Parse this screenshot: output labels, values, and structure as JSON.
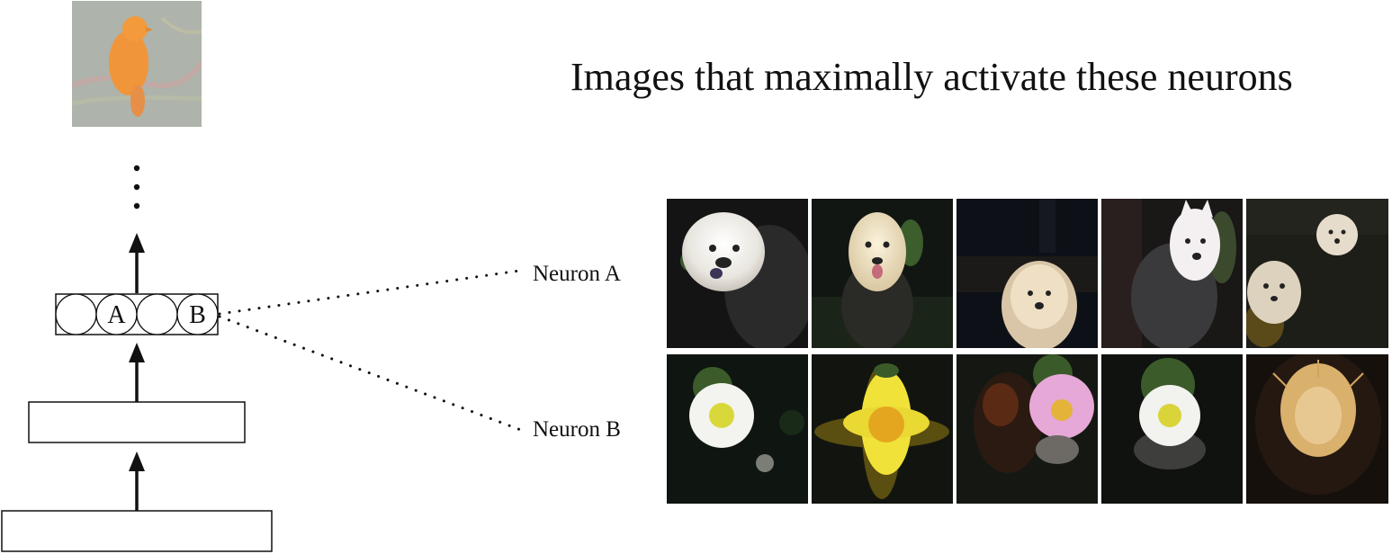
{
  "title": "Images that maximally activate these neurons",
  "neurons": {
    "a": {
      "circle_label": "A",
      "row_label": "Neuron A"
    },
    "b": {
      "circle_label": "B",
      "row_label": "Neuron B"
    }
  },
  "input_image": {
    "subject": "bird",
    "colors": {
      "background": "#aeb3ab",
      "body": "#f0953a"
    }
  },
  "grid": {
    "rows": [
      {
        "row": "Neuron A",
        "tiles": [
          "chow-dog",
          "pyrenees-dog",
          "shaggy-dog",
          "samoyed-dog",
          "terrier-dogs"
        ]
      },
      {
        "row": "Neuron B",
        "tiles": [
          "daisy-flower",
          "yellow-daisy-flower",
          "butterfly-pink-flower",
          "daisy-flower",
          "spiky-flower"
        ]
      }
    ]
  }
}
